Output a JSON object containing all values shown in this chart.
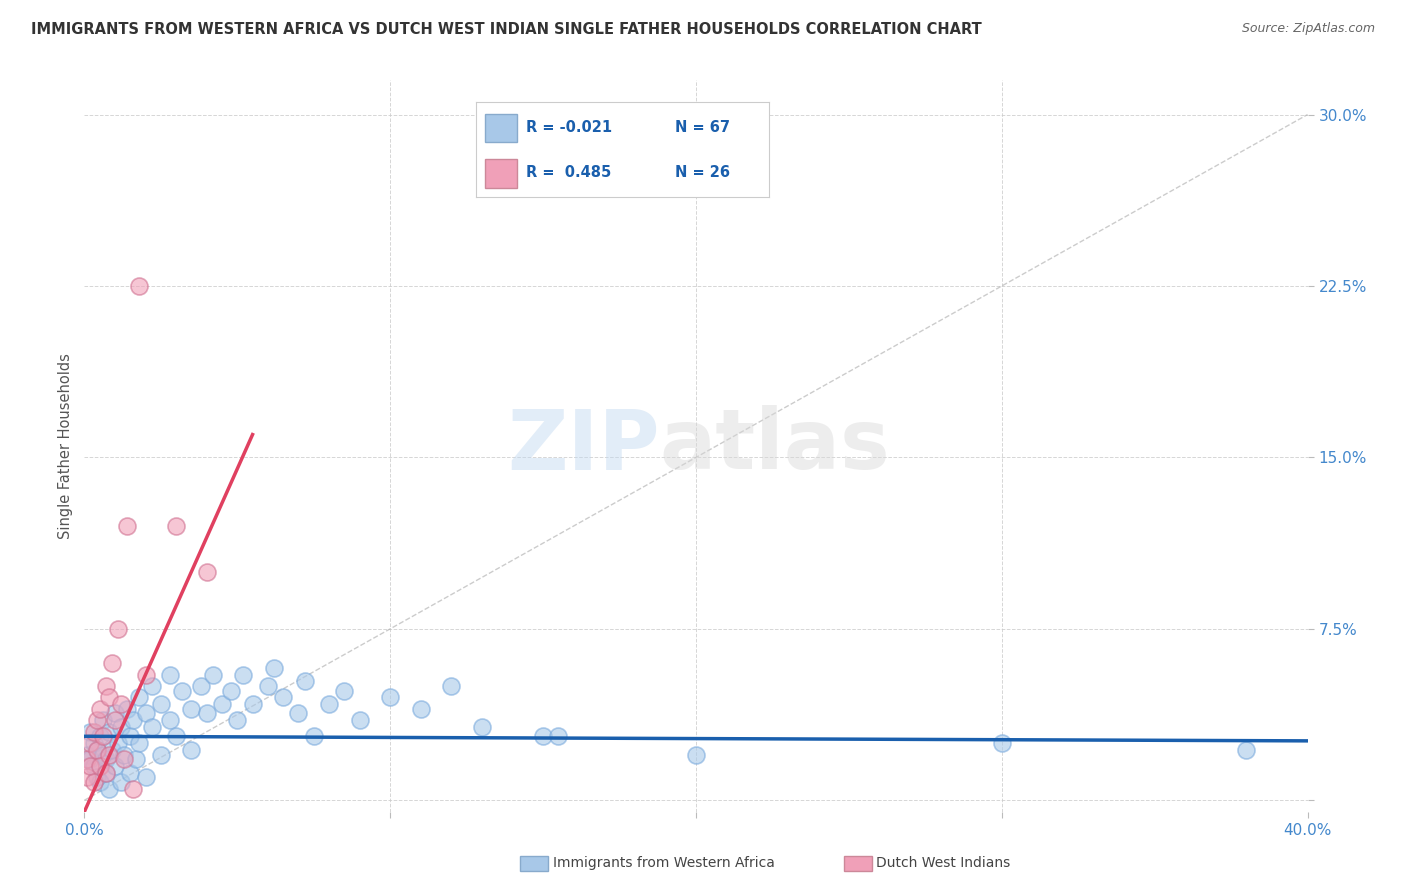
{
  "title": "IMMIGRANTS FROM WESTERN AFRICA VS DUTCH WEST INDIAN SINGLE FATHER HOUSEHOLDS CORRELATION CHART",
  "source": "Source: ZipAtlas.com",
  "ylabel": "Single Father Households",
  "xlim": [
    0.0,
    0.4
  ],
  "ylim": [
    -0.005,
    0.315
  ],
  "xticks": [
    0.0,
    0.1,
    0.2,
    0.3,
    0.4
  ],
  "xtick_labels": [
    "0.0%",
    "",
    "",
    "",
    "40.0%"
  ],
  "yticks": [
    0.0,
    0.075,
    0.15,
    0.225,
    0.3
  ],
  "ytick_labels": [
    "",
    "7.5%",
    "15.0%",
    "22.5%",
    "30.0%"
  ],
  "blue_color": "#a8c8e8",
  "pink_color": "#f0a0b8",
  "blue_line_color": "#1a5fad",
  "pink_line_color": "#e04060",
  "grid_color": "#cccccc",
  "title_color": "#333333",
  "axis_label_color": "#4488cc",
  "watermark": "ZIPatlas",
  "blue_scatter": [
    [
      0.001,
      0.02
    ],
    [
      0.002,
      0.018
    ],
    [
      0.002,
      0.03
    ],
    [
      0.003,
      0.025
    ],
    [
      0.003,
      0.015
    ],
    [
      0.004,
      0.022
    ],
    [
      0.004,
      0.01
    ],
    [
      0.005,
      0.028
    ],
    [
      0.005,
      0.008
    ],
    [
      0.006,
      0.02
    ],
    [
      0.006,
      0.035
    ],
    [
      0.007,
      0.018
    ],
    [
      0.007,
      0.012
    ],
    [
      0.008,
      0.03
    ],
    [
      0.008,
      0.005
    ],
    [
      0.009,
      0.022
    ],
    [
      0.01,
      0.038
    ],
    [
      0.01,
      0.015
    ],
    [
      0.011,
      0.025
    ],
    [
      0.012,
      0.032
    ],
    [
      0.012,
      0.008
    ],
    [
      0.013,
      0.02
    ],
    [
      0.014,
      0.04
    ],
    [
      0.015,
      0.028
    ],
    [
      0.015,
      0.012
    ],
    [
      0.016,
      0.035
    ],
    [
      0.017,
      0.018
    ],
    [
      0.018,
      0.045
    ],
    [
      0.018,
      0.025
    ],
    [
      0.02,
      0.038
    ],
    [
      0.02,
      0.01
    ],
    [
      0.022,
      0.032
    ],
    [
      0.022,
      0.05
    ],
    [
      0.025,
      0.042
    ],
    [
      0.025,
      0.02
    ],
    [
      0.028,
      0.035
    ],
    [
      0.028,
      0.055
    ],
    [
      0.03,
      0.028
    ],
    [
      0.032,
      0.048
    ],
    [
      0.035,
      0.04
    ],
    [
      0.035,
      0.022
    ],
    [
      0.038,
      0.05
    ],
    [
      0.04,
      0.038
    ],
    [
      0.042,
      0.055
    ],
    [
      0.045,
      0.042
    ],
    [
      0.048,
      0.048
    ],
    [
      0.05,
      0.035
    ],
    [
      0.052,
      0.055
    ],
    [
      0.055,
      0.042
    ],
    [
      0.06,
      0.05
    ],
    [
      0.062,
      0.058
    ],
    [
      0.065,
      0.045
    ],
    [
      0.07,
      0.038
    ],
    [
      0.072,
      0.052
    ],
    [
      0.075,
      0.028
    ],
    [
      0.08,
      0.042
    ],
    [
      0.085,
      0.048
    ],
    [
      0.09,
      0.035
    ],
    [
      0.1,
      0.045
    ],
    [
      0.11,
      0.04
    ],
    [
      0.12,
      0.05
    ],
    [
      0.13,
      0.032
    ],
    [
      0.15,
      0.028
    ],
    [
      0.155,
      0.028
    ],
    [
      0.2,
      0.02
    ],
    [
      0.3,
      0.025
    ],
    [
      0.38,
      0.022
    ]
  ],
  "pink_scatter": [
    [
      0.001,
      0.018
    ],
    [
      0.001,
      0.01
    ],
    [
      0.002,
      0.025
    ],
    [
      0.002,
      0.015
    ],
    [
      0.003,
      0.03
    ],
    [
      0.003,
      0.008
    ],
    [
      0.004,
      0.022
    ],
    [
      0.004,
      0.035
    ],
    [
      0.005,
      0.04
    ],
    [
      0.005,
      0.015
    ],
    [
      0.006,
      0.028
    ],
    [
      0.007,
      0.05
    ],
    [
      0.007,
      0.012
    ],
    [
      0.008,
      0.045
    ],
    [
      0.008,
      0.02
    ],
    [
      0.009,
      0.06
    ],
    [
      0.01,
      0.035
    ],
    [
      0.011,
      0.075
    ],
    [
      0.012,
      0.042
    ],
    [
      0.013,
      0.018
    ],
    [
      0.014,
      0.12
    ],
    [
      0.016,
      0.005
    ],
    [
      0.018,
      0.225
    ],
    [
      0.02,
      0.055
    ],
    [
      0.03,
      0.12
    ],
    [
      0.04,
      0.1
    ]
  ],
  "pink_line_x": [
    0.0,
    0.055
  ],
  "pink_line_y": [
    -0.005,
    0.16
  ]
}
